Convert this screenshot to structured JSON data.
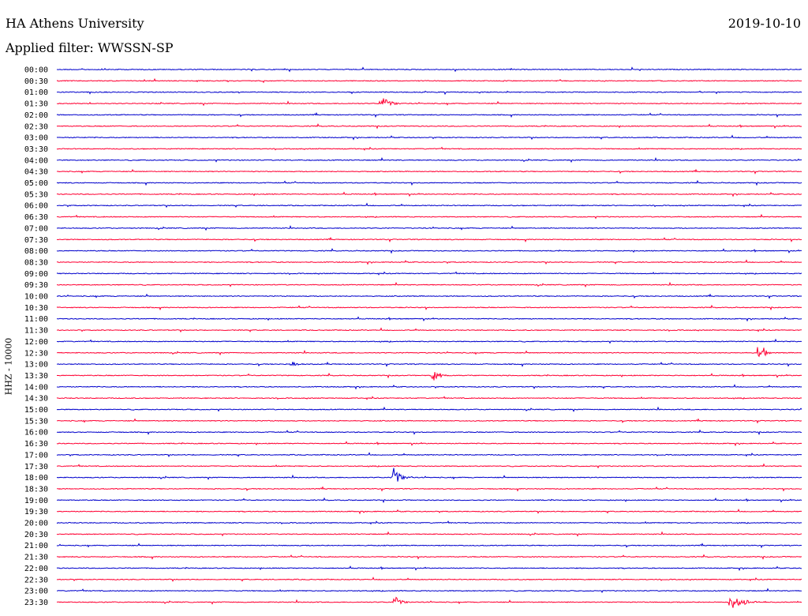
{
  "header": {
    "title": "HA Athens University",
    "date": "2019-10-10",
    "filter": "Applied filter: WWSSN-SP",
    "side_label": "HHZ - 10000"
  },
  "colors": {
    "blue": "#0000cc",
    "red": "#ff0033"
  },
  "chart_data": {
    "type": "line",
    "title": "HA Athens University",
    "subtitle": "Applied filter: WWSSN-SP",
    "ylabel": "HHZ - 10000",
    "rows": [
      {
        "label": "00:00",
        "color": "blue",
        "events": []
      },
      {
        "label": "00:30",
        "color": "red",
        "events": []
      },
      {
        "label": "01:00",
        "color": "blue",
        "events": []
      },
      {
        "label": "01:30",
        "color": "red",
        "events": [
          {
            "x": 483,
            "amp": 9,
            "dur": 28
          }
        ]
      },
      {
        "label": "02:00",
        "color": "blue",
        "events": []
      },
      {
        "label": "02:30",
        "color": "red",
        "events": []
      },
      {
        "label": "03:00",
        "color": "blue",
        "events": []
      },
      {
        "label": "03:30",
        "color": "red",
        "events": []
      },
      {
        "label": "04:00",
        "color": "blue",
        "events": []
      },
      {
        "label": "04:30",
        "color": "red",
        "events": []
      },
      {
        "label": "05:00",
        "color": "blue",
        "events": []
      },
      {
        "label": "05:30",
        "color": "red",
        "events": []
      },
      {
        "label": "06:00",
        "color": "blue",
        "events": []
      },
      {
        "label": "06:30",
        "color": "red",
        "events": []
      },
      {
        "label": "07:00",
        "color": "blue",
        "events": []
      },
      {
        "label": "07:30",
        "color": "red",
        "events": []
      },
      {
        "label": "08:00",
        "color": "blue",
        "events": []
      },
      {
        "label": "08:30",
        "color": "red",
        "events": []
      },
      {
        "label": "09:00",
        "color": "blue",
        "events": []
      },
      {
        "label": "09:30",
        "color": "red",
        "events": []
      },
      {
        "label": "10:00",
        "color": "blue",
        "events": []
      },
      {
        "label": "10:30",
        "color": "red",
        "events": []
      },
      {
        "label": "11:00",
        "color": "blue",
        "events": []
      },
      {
        "label": "11:30",
        "color": "red",
        "events": []
      },
      {
        "label": "12:00",
        "color": "blue",
        "events": []
      },
      {
        "label": "12:30",
        "color": "red",
        "events": [
          {
            "x": 960,
            "amp": 9,
            "dur": 10
          },
          {
            "x": 968,
            "amp": 8,
            "dur": 10
          }
        ]
      },
      {
        "label": "13:00",
        "color": "blue",
        "events": [
          {
            "x": 370,
            "amp": 4,
            "dur": 16
          }
        ]
      },
      {
        "label": "13:30",
        "color": "red",
        "events": [
          {
            "x": 549,
            "amp": 12,
            "dur": 18
          }
        ]
      },
      {
        "label": "14:00",
        "color": "blue",
        "events": []
      },
      {
        "label": "14:30",
        "color": "red",
        "events": []
      },
      {
        "label": "15:00",
        "color": "blue",
        "events": []
      },
      {
        "label": "15:30",
        "color": "red",
        "events": []
      },
      {
        "label": "16:00",
        "color": "blue",
        "events": []
      },
      {
        "label": "16:30",
        "color": "red",
        "events": []
      },
      {
        "label": "17:00",
        "color": "blue",
        "events": []
      },
      {
        "label": "17:30",
        "color": "red",
        "events": []
      },
      {
        "label": "18:00",
        "color": "blue",
        "events": [
          {
            "x": 499,
            "amp": 13,
            "dur": 22
          }
        ]
      },
      {
        "label": "18:30",
        "color": "red",
        "events": []
      },
      {
        "label": "19:00",
        "color": "blue",
        "events": []
      },
      {
        "label": "19:30",
        "color": "red",
        "events": []
      },
      {
        "label": "20:00",
        "color": "blue",
        "events": []
      },
      {
        "label": "20:30",
        "color": "red",
        "events": []
      },
      {
        "label": "21:00",
        "color": "blue",
        "events": []
      },
      {
        "label": "21:30",
        "color": "red",
        "events": []
      },
      {
        "label": "22:00",
        "color": "blue",
        "events": []
      },
      {
        "label": "22:30",
        "color": "red",
        "events": []
      },
      {
        "label": "23:00",
        "color": "blue",
        "events": []
      },
      {
        "label": "23:30",
        "color": "red",
        "events": [
          {
            "x": 500,
            "amp": 8,
            "dur": 20
          },
          {
            "x": 925,
            "amp": 9,
            "dur": 45
          }
        ]
      }
    ]
  }
}
